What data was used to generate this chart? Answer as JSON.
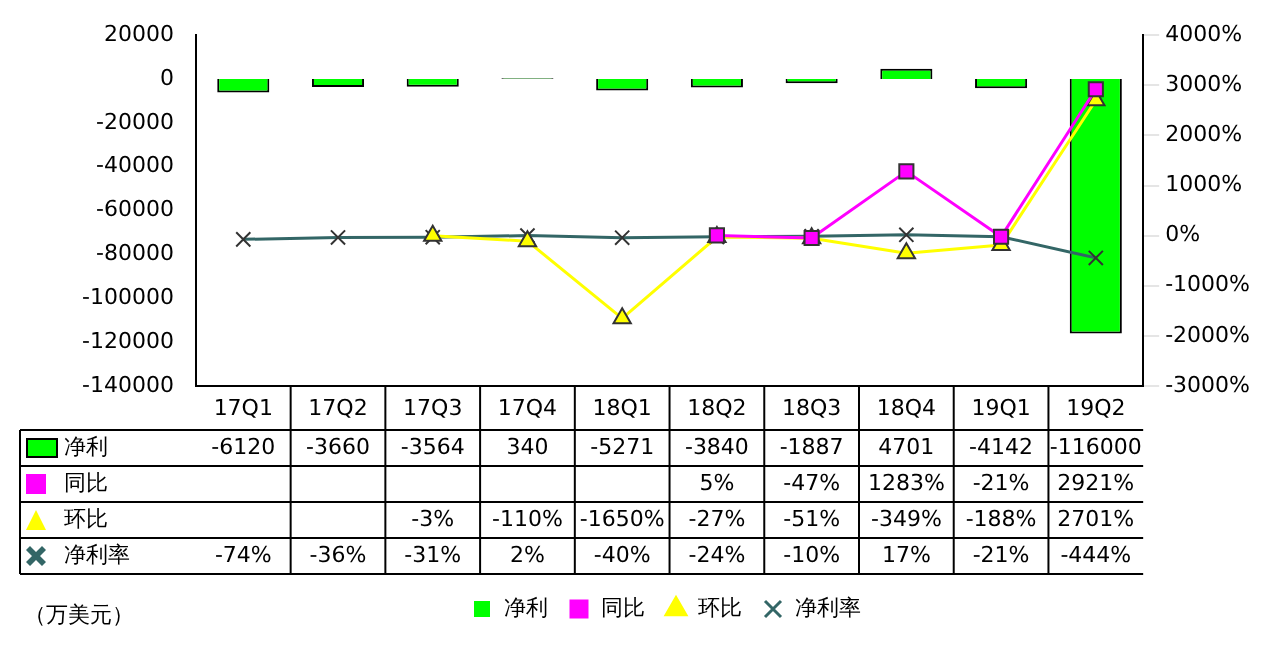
{
  "chart_data": {
    "type": "line",
    "categories": [
      "17Q1",
      "17Q2",
      "17Q3",
      "17Q4",
      "18Q1",
      "18Q2",
      "18Q3",
      "18Q4",
      "19Q1",
      "19Q2"
    ],
    "series": [
      {
        "name": "净利",
        "type": "bar",
        "color": "#00ff00",
        "values": [
          -6120,
          -3660,
          -3564,
          340,
          -5271,
          -3840,
          -1887,
          4701,
          -4142,
          -116000
        ],
        "value_labels": [
          "-6120",
          "-3660",
          "-3564",
          "340",
          "-5271",
          "-3840",
          "-1887",
          "4701",
          "-4142",
          "-116000"
        ]
      },
      {
        "name": "同比",
        "axis": "y2",
        "marker": "square",
        "color": "#ff00ff",
        "values": [
          null,
          null,
          null,
          null,
          null,
          5,
          -47,
          1283,
          -21,
          2921
        ],
        "value_labels": [
          null,
          null,
          null,
          null,
          null,
          "5%",
          "-47%",
          "1283%",
          "-21%",
          "2921%"
        ]
      },
      {
        "name": "环比",
        "axis": "y2",
        "marker": "triangle",
        "color": "#ffff00",
        "values": [
          null,
          null,
          -3,
          -110,
          -1650,
          -27,
          -51,
          -349,
          -188,
          2701
        ],
        "value_labels": [
          null,
          null,
          "-3%",
          "-110%",
          "-1650%",
          "-27%",
          "-51%",
          "-349%",
          "-188%",
          "2701%"
        ]
      },
      {
        "name": "净利率",
        "axis": "y2",
        "marker": "cross",
        "color": "#336666",
        "values": [
          -74,
          -36,
          -31,
          2,
          -40,
          -24,
          -10,
          17,
          -21,
          -444
        ],
        "value_labels": [
          "-74%",
          "-36%",
          "-31%",
          "2%",
          "-40%",
          "-24%",
          "-10%",
          "17%",
          "-21%",
          "-444%"
        ]
      }
    ],
    "ylim": [
      -140000,
      20000
    ],
    "yticks": [
      -140000,
      -120000,
      -100000,
      -80000,
      -60000,
      -40000,
      -20000,
      0,
      20000
    ],
    "y2lim": [
      -3000,
      4000
    ],
    "y2ticks": [
      {
        "value": -3000,
        "label": "-3000%"
      },
      {
        "value": -2000,
        "label": "-2000%"
      },
      {
        "value": -1000,
        "label": "-1000%"
      },
      {
        "value": 0,
        "label": "0%"
      },
      {
        "value": 1000,
        "label": "1000%"
      },
      {
        "value": 2000,
        "label": "2000%"
      },
      {
        "value": 3000,
        "label": "3000%"
      },
      {
        "value": 4000,
        "label": "4000%"
      }
    ],
    "legend": "bottom",
    "annotations": [
      "（万美元）"
    ]
  }
}
